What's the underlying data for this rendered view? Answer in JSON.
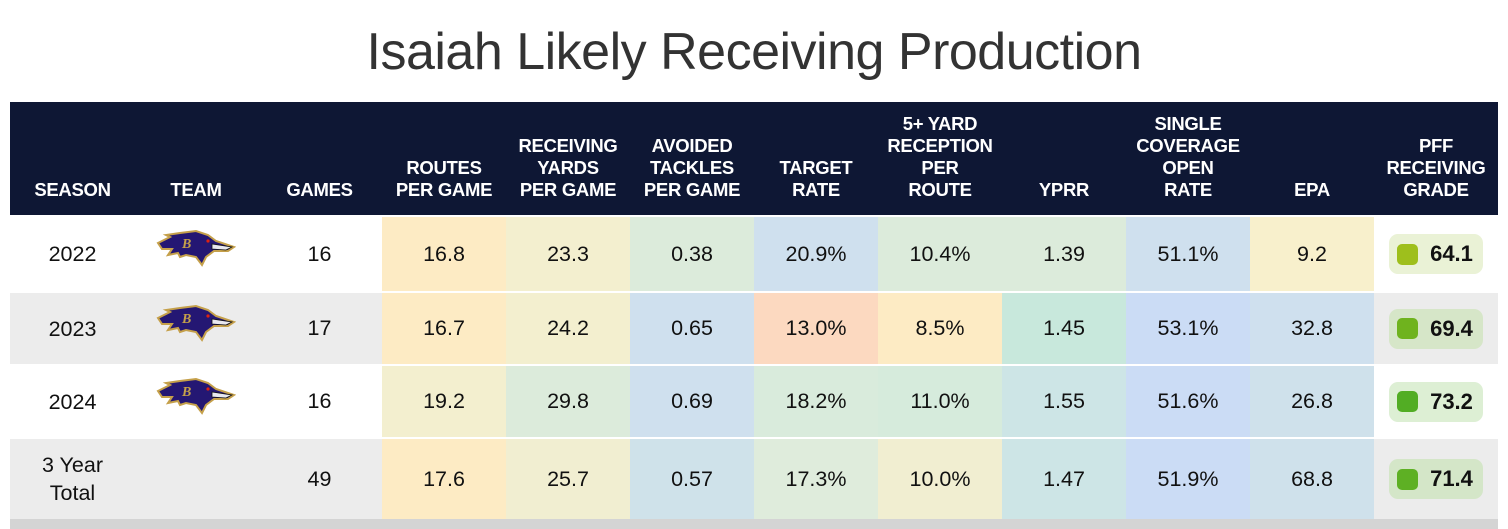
{
  "title": "Isaiah Likely Receiving Production",
  "headers": [
    "SEASON",
    "TEAM",
    "GAMES",
    "ROUTES\nPER GAME",
    "RECEIVING\nYARDS\nPER GAME",
    "AVOIDED\nTACKLES\nPER GAME",
    "TARGET\nRATE",
    "5+ YARD\nRECEPTION\nPER\nROUTE",
    "YPRR",
    "SINGLE\nCOVERAGE\nOPEN\nRATE",
    "EPA",
    "PFF\nRECEIVING\nGRADE"
  ],
  "team_logo": "baltimore-ravens-logo",
  "rows": [
    {
      "season": "2022",
      "team": "BAL",
      "games": "16",
      "values": [
        "16.8",
        "23.3",
        "0.38",
        "20.9%",
        "10.4%",
        "1.39",
        "51.1%",
        "9.2"
      ],
      "colors": [
        "#fdebc4",
        "#f3efcf",
        "#dcebdb",
        "#cfe0ee",
        "#dcebdb",
        "#dcebdb",
        "#cfe0ee",
        "#f8f0cc"
      ],
      "grade": "64.1",
      "grade_color": "#9ebf1c",
      "grade_bg": "#eaf2d6",
      "row_bg": "#ffffff"
    },
    {
      "season": "2023",
      "team": "BAL",
      "games": "17",
      "values": [
        "16.7",
        "24.2",
        "0.65",
        "13.0%",
        "8.5%",
        "1.45",
        "53.1%",
        "32.8"
      ],
      "colors": [
        "#fdebc4",
        "#f3efcf",
        "#cfe0ee",
        "#fcd9c0",
        "#fdebc4",
        "#c8e8dc",
        "#cbdcf5",
        "#cfe0ee"
      ],
      "grade": "69.4",
      "grade_color": "#6fb31e",
      "grade_bg": "#d6e6c8",
      "row_bg": "#ececec"
    },
    {
      "season": "2024",
      "team": "BAL",
      "games": "16",
      "values": [
        "19.2",
        "29.8",
        "0.69",
        "18.2%",
        "11.0%",
        "1.55",
        "51.6%",
        "26.8"
      ],
      "colors": [
        "#f3efcf",
        "#dcebdb",
        "#cfe0ee",
        "#d9ebdc",
        "#d6ebdc",
        "#cde5e6",
        "#cbdcf5",
        "#cfe1eb"
      ],
      "grade": "73.2",
      "grade_color": "#52ad24",
      "grade_bg": "#ddefd4",
      "row_bg": "#ffffff"
    },
    {
      "season": "3 Year\nTotal",
      "team": "",
      "games": "49",
      "values": [
        "17.6",
        "25.7",
        "0.57",
        "17.3%",
        "10.0%",
        "1.47",
        "51.9%",
        "68.8"
      ],
      "colors": [
        "#fdebc4",
        "#f1eed1",
        "#cfe2ea",
        "#dfecdc",
        "#f1eed1",
        "#cde5e6",
        "#cbdcf5",
        "#cfe1eb"
      ],
      "grade": "71.4",
      "grade_color": "#5eb024",
      "grade_bg": "#d4e6c8",
      "row_bg": "#ececec"
    }
  ],
  "chart_data": {
    "type": "table",
    "title": "Isaiah Likely Receiving Production",
    "columns": [
      "Season",
      "Team",
      "Games",
      "Routes Per Game",
      "Receiving Yards Per Game",
      "Avoided Tackles Per Game",
      "Target Rate",
      "5+ Yard Reception Per Route",
      "YPRR",
      "Single Coverage Open Rate",
      "EPA",
      "PFF Receiving Grade"
    ],
    "rows": [
      [
        "2022",
        "BAL",
        16,
        16.8,
        23.3,
        0.38,
        "20.9%",
        "10.4%",
        1.39,
        "51.1%",
        9.2,
        64.1
      ],
      [
        "2023",
        "BAL",
        17,
        16.7,
        24.2,
        0.65,
        "13.0%",
        "8.5%",
        1.45,
        "53.1%",
        32.8,
        69.4
      ],
      [
        "2024",
        "BAL",
        16,
        19.2,
        29.8,
        0.69,
        "18.2%",
        "11.0%",
        1.55,
        "51.6%",
        26.8,
        73.2
      ],
      [
        "3 Year Total",
        "",
        49,
        17.6,
        25.7,
        0.57,
        "17.3%",
        "10.0%",
        1.47,
        "51.9%",
        68.8,
        71.4
      ]
    ]
  }
}
